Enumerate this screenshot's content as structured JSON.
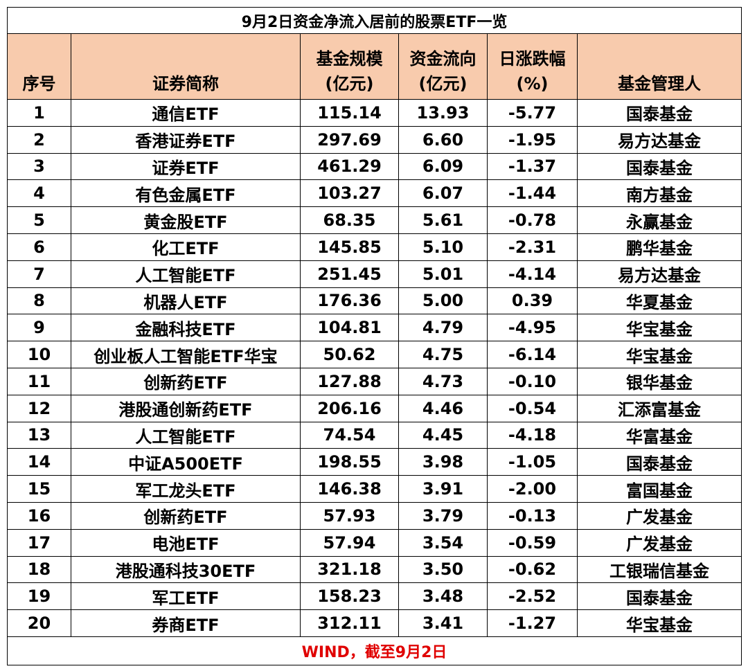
{
  "title": "9月2日资金净流入居前的股票ETF一览",
  "columns": [
    [
      "序号"
    ],
    [
      "证券简称"
    ],
    [
      "基金规模",
      "(亿元)"
    ],
    [
      "资金流向",
      "(亿元)"
    ],
    [
      "日涨跌幅",
      "(%)"
    ],
    [
      "基金管理人"
    ]
  ],
  "rows": [
    [
      "1",
      "通信ETF",
      "115.14",
      "13.93",
      "-5.77",
      "国泰基金"
    ],
    [
      "2",
      "香港证券ETF",
      "297.69",
      "6.60",
      "-1.95",
      "易方达基金"
    ],
    [
      "3",
      "证券ETF",
      "461.29",
      "6.09",
      "-1.37",
      "国泰基金"
    ],
    [
      "4",
      "有色金属ETF",
      "103.27",
      "6.07",
      "-1.44",
      "南方基金"
    ],
    [
      "5",
      "黄金股ETF",
      "68.35",
      "5.61",
      "-0.78",
      "永赢基金"
    ],
    [
      "6",
      "化工ETF",
      "145.85",
      "5.10",
      "-2.31",
      "鹏华基金"
    ],
    [
      "7",
      "人工智能ETF",
      "251.45",
      "5.01",
      "-4.14",
      "易方达基金"
    ],
    [
      "8",
      "机器人ETF",
      "176.36",
      "5.00",
      "0.39",
      "华夏基金"
    ],
    [
      "9",
      "金融科技ETF",
      "104.81",
      "4.79",
      "-4.95",
      "华宝基金"
    ],
    [
      "10",
      "创业板人工智能ETF华宝",
      "50.62",
      "4.75",
      "-6.14",
      "华宝基金"
    ],
    [
      "11",
      "创新药ETF",
      "127.88",
      "4.73",
      "-0.10",
      "银华基金"
    ],
    [
      "12",
      "港股通创新药ETF",
      "206.16",
      "4.46",
      "-0.54",
      "汇添富基金"
    ],
    [
      "13",
      "人工智能ETF",
      "74.54",
      "4.45",
      "-4.18",
      "华富基金"
    ],
    [
      "14",
      "中证A500ETF",
      "198.55",
      "3.98",
      "-1.05",
      "国泰基金"
    ],
    [
      "15",
      "军工龙头ETF",
      "146.38",
      "3.91",
      "-2.00",
      "富国基金"
    ],
    [
      "16",
      "创新药ETF",
      "57.93",
      "3.79",
      "-0.13",
      "广发基金"
    ],
    [
      "17",
      "电池ETF",
      "57.94",
      "3.54",
      "-0.59",
      "广发基金"
    ],
    [
      "18",
      "港股通科技30ETF",
      "321.18",
      "3.50",
      "-0.62",
      "工银瑞信基金"
    ],
    [
      "19",
      "军工ETF",
      "158.23",
      "3.48",
      "-2.52",
      "国泰基金"
    ],
    [
      "20",
      "券商ETF",
      "312.11",
      "3.41",
      "-1.27",
      "华宝基金"
    ]
  ],
  "footer": "WIND，截至9月2日"
}
